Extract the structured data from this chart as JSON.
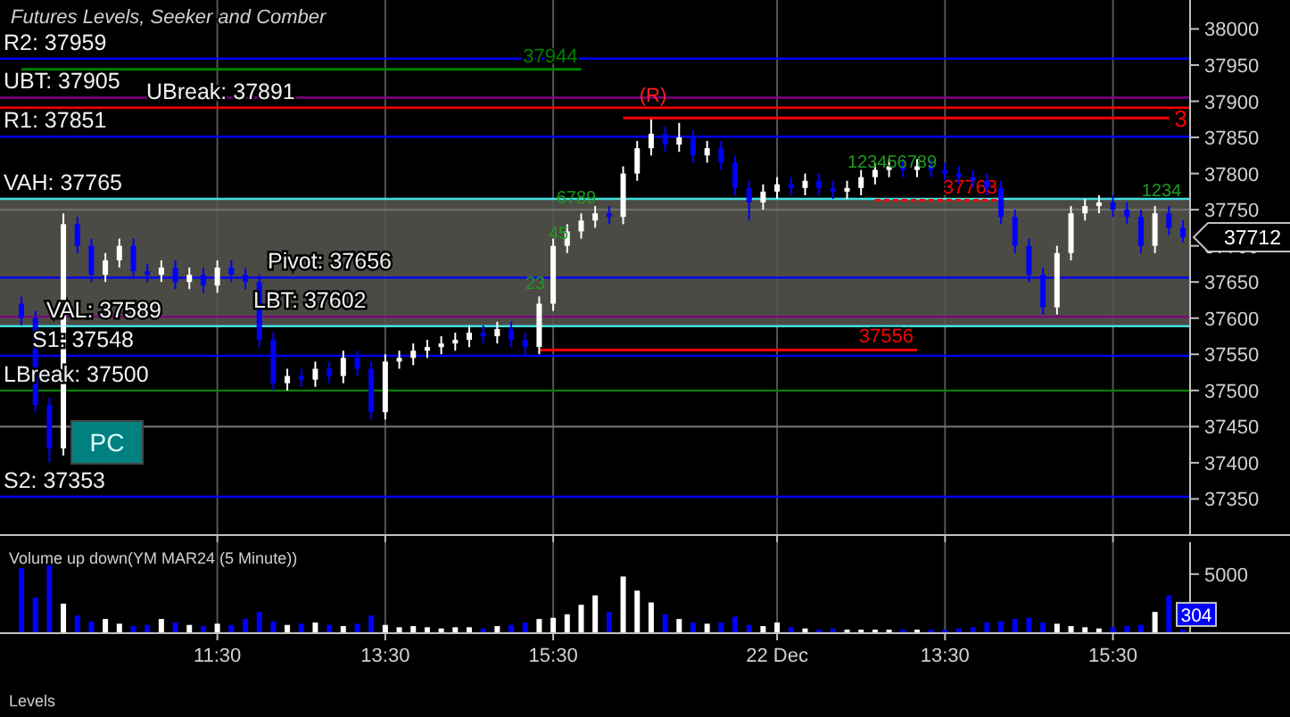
{
  "chart_data": [
    {
      "type": "candlestick",
      "title": "Futures Levels, Seeker and Comber",
      "tick_labels": "y",
      "grid": "x",
      "ylim": [
        37300,
        38040
      ],
      "yticks": [
        37350,
        37400,
        37450,
        37500,
        37550,
        37600,
        37650,
        37700,
        37750,
        37800,
        37850,
        37900,
        37950,
        38000
      ],
      "categories": [
        null,
        null,
        null,
        null,
        null,
        null,
        null,
        null,
        null,
        null,
        null,
        null,
        null,
        null,
        null,
        null,
        null,
        null,
        null,
        null,
        null,
        null,
        null,
        null,
        null,
        null,
        null,
        null,
        null,
        null,
        null,
        null,
        null,
        null,
        null,
        null,
        null,
        null,
        null,
        null,
        null,
        null,
        null,
        null,
        null,
        null,
        null,
        null,
        null,
        null,
        null,
        null,
        null,
        null,
        null,
        null,
        null,
        null,
        null,
        null,
        null,
        null,
        null,
        null,
        null,
        null,
        null,
        null,
        null,
        null,
        null,
        null,
        null,
        null,
        null,
        null,
        null,
        null,
        null,
        null,
        null,
        null,
        null,
        null
      ],
      "ohlc": [
        [
          37620,
          37630,
          37590,
          37600
        ],
        [
          37600,
          37610,
          37470,
          37480
        ],
        [
          37480,
          37490,
          37400,
          37420
        ],
        [
          37420,
          37745,
          37410,
          37730
        ],
        [
          37730,
          37740,
          37690,
          37700
        ],
        [
          37700,
          37710,
          37650,
          37660
        ],
        [
          37660,
          37690,
          37650,
          37680
        ],
        [
          37680,
          37710,
          37670,
          37700
        ],
        [
          37700,
          37710,
          37655,
          37665
        ],
        [
          37665,
          37675,
          37650,
          37660
        ],
        [
          37660,
          37680,
          37650,
          37670
        ],
        [
          37670,
          37680,
          37640,
          37650
        ],
        [
          37650,
          37670,
          37640,
          37660
        ],
        [
          37660,
          37670,
          37635,
          37645
        ],
        [
          37645,
          37680,
          37635,
          37670
        ],
        [
          37670,
          37680,
          37650,
          37660
        ],
        [
          37660,
          37670,
          37640,
          37650
        ],
        [
          37650,
          37660,
          37560,
          37570
        ],
        [
          37570,
          37580,
          37500,
          37510
        ],
        [
          37510,
          37530,
          37500,
          37520
        ],
        [
          37520,
          37530,
          37505,
          37515
        ],
        [
          37515,
          37540,
          37505,
          37530
        ],
        [
          37530,
          37540,
          37510,
          37520
        ],
        [
          37520,
          37555,
          37510,
          37545
        ],
        [
          37545,
          37555,
          37520,
          37530
        ],
        [
          37530,
          37540,
          37460,
          37470
        ],
        [
          37470,
          37550,
          37460,
          37540
        ],
        [
          37540,
          37555,
          37530,
          37545
        ],
        [
          37545,
          37565,
          37535,
          37555
        ],
        [
          37555,
          37570,
          37545,
          37560
        ],
        [
          37560,
          37575,
          37550,
          37565
        ],
        [
          37565,
          37580,
          37555,
          37570
        ],
        [
          37570,
          37590,
          37560,
          37580
        ],
        [
          37580,
          37590,
          37565,
          37575
        ],
        [
          37575,
          37595,
          37565,
          37585
        ],
        [
          37585,
          37595,
          37560,
          37570
        ],
        [
          37570,
          37580,
          37550,
          37560
        ],
        [
          37560,
          37630,
          37550,
          37620
        ],
        [
          37620,
          37710,
          37610,
          37700
        ],
        [
          37700,
          37730,
          37690,
          37720
        ],
        [
          37720,
          37745,
          37710,
          37735
        ],
        [
          37735,
          37755,
          37725,
          37745
        ],
        [
          37745,
          37755,
          37730,
          37740
        ],
        [
          37740,
          37810,
          37730,
          37800
        ],
        [
          37800,
          37845,
          37790,
          37835
        ],
        [
          37835,
          37875,
          37825,
          37855
        ],
        [
          37855,
          37865,
          37830,
          37840
        ],
        [
          37840,
          37870,
          37830,
          37850
        ],
        [
          37850,
          37860,
          37815,
          37825
        ],
        [
          37825,
          37845,
          37815,
          37835
        ],
        [
          37835,
          37845,
          37805,
          37815
        ],
        [
          37815,
          37825,
          37770,
          37780
        ],
        [
          37780,
          37790,
          37735,
          37760
        ],
        [
          37760,
          37785,
          37750,
          37775
        ],
        [
          37775,
          37795,
          37765,
          37785
        ],
        [
          37785,
          37795,
          37770,
          37780
        ],
        [
          37780,
          37800,
          37770,
          37790
        ],
        [
          37790,
          37800,
          37770,
          37780
        ],
        [
          37780,
          37790,
          37765,
          37775
        ],
        [
          37775,
          37790,
          37765,
          37780
        ],
        [
          37780,
          37805,
          37770,
          37795
        ],
        [
          37795,
          37815,
          37785,
          37805
        ],
        [
          37805,
          37820,
          37795,
          37810
        ],
        [
          37810,
          37820,
          37795,
          37805
        ],
        [
          37805,
          37820,
          37795,
          37810
        ],
        [
          37810,
          37820,
          37795,
          37805
        ],
        [
          37805,
          37815,
          37790,
          37800
        ],
        [
          37800,
          37810,
          37785,
          37795
        ],
        [
          37795,
          37805,
          37780,
          37790
        ],
        [
          37790,
          37800,
          37770,
          37780
        ],
        [
          37780,
          37790,
          37730,
          37740
        ],
        [
          37740,
          37750,
          37690,
          37700
        ],
        [
          37700,
          37710,
          37650,
          37660
        ],
        [
          37660,
          37670,
          37605,
          37615
        ],
        [
          37615,
          37700,
          37605,
          37690
        ],
        [
          37690,
          37755,
          37680,
          37745
        ],
        [
          37745,
          37765,
          37735,
          37755
        ],
        [
          37755,
          37770,
          37745,
          37760
        ],
        [
          37760,
          37770,
          37740,
          37750
        ],
        [
          37750,
          37760,
          37730,
          37740
        ],
        [
          37740,
          37750,
          37690,
          37700
        ],
        [
          37700,
          37755,
          37690,
          37745
        ],
        [
          37745,
          37755,
          37715,
          37725
        ],
        [
          37725,
          37735,
          37705,
          37712
        ]
      ],
      "colors": [
        "#0000ff",
        "#0000ff",
        "#0000ff",
        "#ffffff",
        "#0000ff",
        "#0000ff",
        "#ffffff",
        "#ffffff",
        "#0000ff",
        "#0000ff",
        "#ffffff",
        "#0000ff",
        "#ffffff",
        "#0000ff",
        "#ffffff",
        "#0000ff",
        "#0000ff",
        "#0000ff",
        "#0000ff",
        "#ffffff",
        "#0000ff",
        "#ffffff",
        "#0000ff",
        "#ffffff",
        "#0000ff",
        "#0000ff",
        "#ffffff",
        "#ffffff",
        "#ffffff",
        "#ffffff",
        "#ffffff",
        "#ffffff",
        "#ffffff",
        "#0000ff",
        "#ffffff",
        "#0000ff",
        "#0000ff",
        "#ffffff",
        "#ffffff",
        "#ffffff",
        "#ffffff",
        "#ffffff",
        "#0000ff",
        "#ffffff",
        "#ffffff",
        "#ffffff",
        "#0000ff",
        "#ffffff",
        "#0000ff",
        "#ffffff",
        "#0000ff",
        "#0000ff",
        "#0000ff",
        "#ffffff",
        "#ffffff",
        "#0000ff",
        "#ffffff",
        "#0000ff",
        "#0000ff",
        "#ffffff",
        "#ffffff",
        "#ffffff",
        "#ffffff",
        "#0000ff",
        "#ffffff",
        "#0000ff",
        "#0000ff",
        "#0000ff",
        "#0000ff",
        "#0000ff",
        "#0000ff",
        "#0000ff",
        "#0000ff",
        "#0000ff",
        "#ffffff",
        "#ffffff",
        "#ffffff",
        "#ffffff",
        "#0000ff",
        "#0000ff",
        "#0000ff",
        "#ffffff",
        "#0000ff",
        "#0000ff"
      ],
      "bands": [
        {
          "axis": "y",
          "from": 37589,
          "to": 37765,
          "color": "#4b4a44"
        }
      ],
      "ref_lines": [
        {
          "axis": "y",
          "value": 37959,
          "label": "R2: 37959",
          "color": "#0000ff"
        },
        {
          "axis": "y",
          "value": 37905,
          "label": "UBT: 37905",
          "color": "#800080"
        },
        {
          "axis": "y",
          "value": 37891,
          "label": "UBreak: 37891",
          "color": "#ff0000"
        },
        {
          "axis": "y",
          "value": 37851,
          "label": "R1: 37851",
          "color": "#0000ff"
        },
        {
          "axis": "y",
          "value": 37765,
          "label": "VAH: 37765",
          "color": "#40e0e0"
        },
        {
          "axis": "y",
          "value": 37750,
          "label": null,
          "color": "#6e6e6e"
        },
        {
          "axis": "y",
          "value": 37656,
          "label": "Pivot: 37656",
          "color": "#0000ff"
        },
        {
          "axis": "y",
          "value": 37602,
          "label": "LBT: 37602",
          "color": "#800080"
        },
        {
          "axis": "y",
          "value": 37589,
          "label": "VAL: 37589",
          "color": "#40e0e0"
        },
        {
          "axis": "y",
          "value": 37548,
          "label": "S1: 37548",
          "color": "#0000ff"
        },
        {
          "axis": "y",
          "value": 37500,
          "label": "LBreak: 37500",
          "color": "#008000"
        },
        {
          "axis": "y",
          "value": 37450,
          "label": null,
          "color": "#6e6e6e"
        },
        {
          "axis": "y",
          "value": 37353,
          "label": "S2: 37353",
          "color": "#0000ff"
        }
      ],
      "series": [
        {
          "type": "line",
          "name": "37944",
          "color": "#008000",
          "values": [
            37944,
            37944,
            37944,
            37944,
            37944,
            37944,
            37944,
            37944,
            37944,
            37944,
            37944,
            37944,
            37944,
            37944,
            37944,
            37944,
            37944,
            37944,
            37944,
            37944,
            37944,
            37944,
            37944,
            37944,
            37944,
            37944,
            37944,
            37944,
            37944,
            37944,
            37944,
            37944,
            37944,
            37944,
            37944,
            37944,
            37944,
            37944,
            37944,
            37944,
            37944,
            null,
            null,
            null,
            null,
            null,
            null,
            null,
            null,
            null,
            null,
            null,
            null,
            null,
            null,
            null,
            null,
            null,
            null,
            null,
            null,
            null,
            null,
            null,
            null,
            null,
            null,
            null,
            null,
            null,
            null,
            null,
            null,
            null,
            null,
            null,
            null,
            null,
            null,
            null,
            null,
            null,
            null,
            null
          ]
        },
        {
          "type": "line",
          "name": "37556",
          "color": "#ff0000",
          "values": [
            null,
            null,
            null,
            null,
            null,
            null,
            null,
            null,
            null,
            null,
            null,
            null,
            null,
            null,
            null,
            null,
            null,
            null,
            null,
            null,
            null,
            null,
            null,
            null,
            null,
            null,
            null,
            null,
            null,
            null,
            null,
            null,
            null,
            null,
            null,
            null,
            null,
            37556,
            37556,
            37556,
            37556,
            37556,
            37556,
            37556,
            37556,
            37556,
            37556,
            37556,
            37556,
            37556,
            37556,
            37556,
            37556,
            37556,
            37556,
            37556,
            37556,
            37556,
            37556,
            37556,
            37556,
            37556,
            37556,
            37556,
            37556,
            null,
            null,
            null,
            null,
            null,
            null,
            null,
            null,
            null,
            null,
            null,
            null,
            null,
            null,
            null,
            null,
            null,
            null,
            null
          ]
        },
        {
          "type": "line",
          "name": "37763",
          "color": "#ff0000",
          "line_style": "dashed",
          "values": [
            null,
            null,
            null,
            null,
            null,
            null,
            null,
            null,
            null,
            null,
            null,
            null,
            null,
            null,
            null,
            null,
            null,
            null,
            null,
            null,
            null,
            null,
            null,
            null,
            null,
            null,
            null,
            null,
            null,
            null,
            null,
            null,
            null,
            null,
            null,
            null,
            null,
            null,
            null,
            null,
            null,
            null,
            null,
            null,
            null,
            null,
            null,
            null,
            null,
            null,
            null,
            null,
            null,
            null,
            null,
            null,
            null,
            null,
            null,
            null,
            null,
            37763,
            37763,
            37763,
            37763,
            37763,
            37763,
            37763,
            37763,
            37763,
            37763,
            null,
            null,
            null,
            null,
            null,
            null,
            null,
            null,
            null,
            null,
            null,
            null,
            null
          ]
        },
        {
          "type": "line",
          "name": "3",
          "color": "#ff0000",
          "values": [
            null,
            null,
            null,
            null,
            null,
            null,
            null,
            null,
            null,
            null,
            null,
            null,
            null,
            null,
            null,
            null,
            null,
            null,
            null,
            null,
            null,
            null,
            null,
            null,
            null,
            null,
            null,
            null,
            null,
            null,
            null,
            null,
            null,
            null,
            null,
            null,
            null,
            null,
            null,
            null,
            null,
            null,
            null,
            37877,
            37877,
            37877,
            37877,
            37877,
            37877,
            37877,
            37877,
            37877,
            37877,
            37877,
            37877,
            37877,
            37877,
            37877,
            37877,
            37877,
            37877,
            37877,
            37877,
            37877,
            37877,
            37877,
            37877,
            37877,
            37877,
            37877,
            37877,
            37877,
            37877,
            37877,
            37877,
            37877,
            37877,
            37877,
            37877,
            37877,
            37877,
            37877,
            37877,
            null
          ]
        }
      ],
      "annotations": [
        "PC",
        "37712",
        "(R)",
        "23",
        "45",
        "6789",
        "123456789",
        "1234"
      ]
    },
    {
      "type": "bar",
      "title": "Volume up down(YM MAR24 (5 Minute))",
      "grid": "x",
      "ylim": [
        0,
        7700
      ],
      "yticks": [
        5000
      ],
      "categories": [
        null,
        null,
        null,
        null,
        null,
        null,
        null,
        null,
        null,
        null,
        null,
        null,
        null,
        null,
        "11:30",
        null,
        null,
        null,
        null,
        null,
        null,
        null,
        null,
        null,
        null,
        null,
        "13:30",
        null,
        null,
        null,
        null,
        null,
        null,
        null,
        null,
        null,
        null,
        null,
        "15:30",
        null,
        null,
        null,
        null,
        null,
        null,
        null,
        null,
        null,
        null,
        null,
        null,
        null,
        null,
        null,
        "22 Dec",
        null,
        null,
        null,
        null,
        null,
        null,
        null,
        null,
        null,
        null,
        null,
        "13:30",
        null,
        null,
        null,
        null,
        null,
        null,
        null,
        null,
        null,
        null,
        null,
        "15:30",
        null,
        null,
        null,
        null,
        null
      ],
      "values": [
        5500,
        3000,
        6000,
        2500,
        1500,
        1000,
        1200,
        800,
        600,
        700,
        1200,
        900,
        700,
        600,
        800,
        700,
        1200,
        1800,
        1000,
        700,
        800,
        900,
        700,
        600,
        800,
        1500,
        700,
        500,
        600,
        500,
        400,
        500,
        500,
        400,
        600,
        700,
        900,
        1200,
        1300,
        1600,
        2400,
        3200,
        1800,
        4800,
        3600,
        2600,
        1600,
        1200,
        900,
        800,
        900,
        1400,
        700,
        600,
        900,
        500,
        400,
        300,
        400,
        300,
        300,
        300,
        300,
        300,
        300,
        300,
        300,
        400,
        500,
        900,
        1000,
        1200,
        1300,
        900,
        800,
        600,
        500,
        400,
        500,
        600,
        700,
        1800,
        3200,
        304
      ],
      "colors": [
        "#0000ff",
        "#0000ff",
        "#0000ff",
        "#ffffff",
        "#0000ff",
        "#0000ff",
        "#ffffff",
        "#ffffff",
        "#0000ff",
        "#0000ff",
        "#ffffff",
        "#0000ff",
        "#ffffff",
        "#0000ff",
        "#ffffff",
        "#0000ff",
        "#0000ff",
        "#0000ff",
        "#0000ff",
        "#ffffff",
        "#0000ff",
        "#ffffff",
        "#0000ff",
        "#ffffff",
        "#0000ff",
        "#0000ff",
        "#ffffff",
        "#ffffff",
        "#ffffff",
        "#ffffff",
        "#ffffff",
        "#ffffff",
        "#ffffff",
        "#0000ff",
        "#ffffff",
        "#0000ff",
        "#0000ff",
        "#ffffff",
        "#ffffff",
        "#ffffff",
        "#ffffff",
        "#ffffff",
        "#0000ff",
        "#ffffff",
        "#ffffff",
        "#ffffff",
        "#0000ff",
        "#ffffff",
        "#0000ff",
        "#ffffff",
        "#0000ff",
        "#0000ff",
        "#0000ff",
        "#ffffff",
        "#ffffff",
        "#0000ff",
        "#ffffff",
        "#0000ff",
        "#0000ff",
        "#ffffff",
        "#ffffff",
        "#ffffff",
        "#ffffff",
        "#0000ff",
        "#ffffff",
        "#0000ff",
        "#0000ff",
        "#0000ff",
        "#0000ff",
        "#0000ff",
        "#0000ff",
        "#0000ff",
        "#0000ff",
        "#0000ff",
        "#ffffff",
        "#ffffff",
        "#ffffff",
        "#ffffff",
        "#0000ff",
        "#0000ff",
        "#0000ff",
        "#ffffff",
        "#0000ff",
        "#0000ff"
      ],
      "value_labels": [
        null,
        null,
        null,
        null,
        null,
        null,
        null,
        null,
        null,
        null,
        null,
        null,
        null,
        null,
        null,
        null,
        null,
        null,
        null,
        null,
        null,
        null,
        null,
        null,
        null,
        null,
        null,
        null,
        null,
        null,
        null,
        null,
        null,
        null,
        null,
        null,
        null,
        null,
        null,
        null,
        null,
        null,
        null,
        null,
        null,
        null,
        null,
        null,
        null,
        null,
        null,
        null,
        null,
        null,
        null,
        null,
        null,
        null,
        null,
        null,
        null,
        null,
        null,
        null,
        null,
        null,
        null,
        null,
        null,
        null,
        null,
        null,
        null,
        null,
        null,
        null,
        null,
        null,
        null,
        null,
        null,
        null,
        null,
        "304"
      ],
      "annotations": [
        "Levels"
      ]
    }
  ]
}
